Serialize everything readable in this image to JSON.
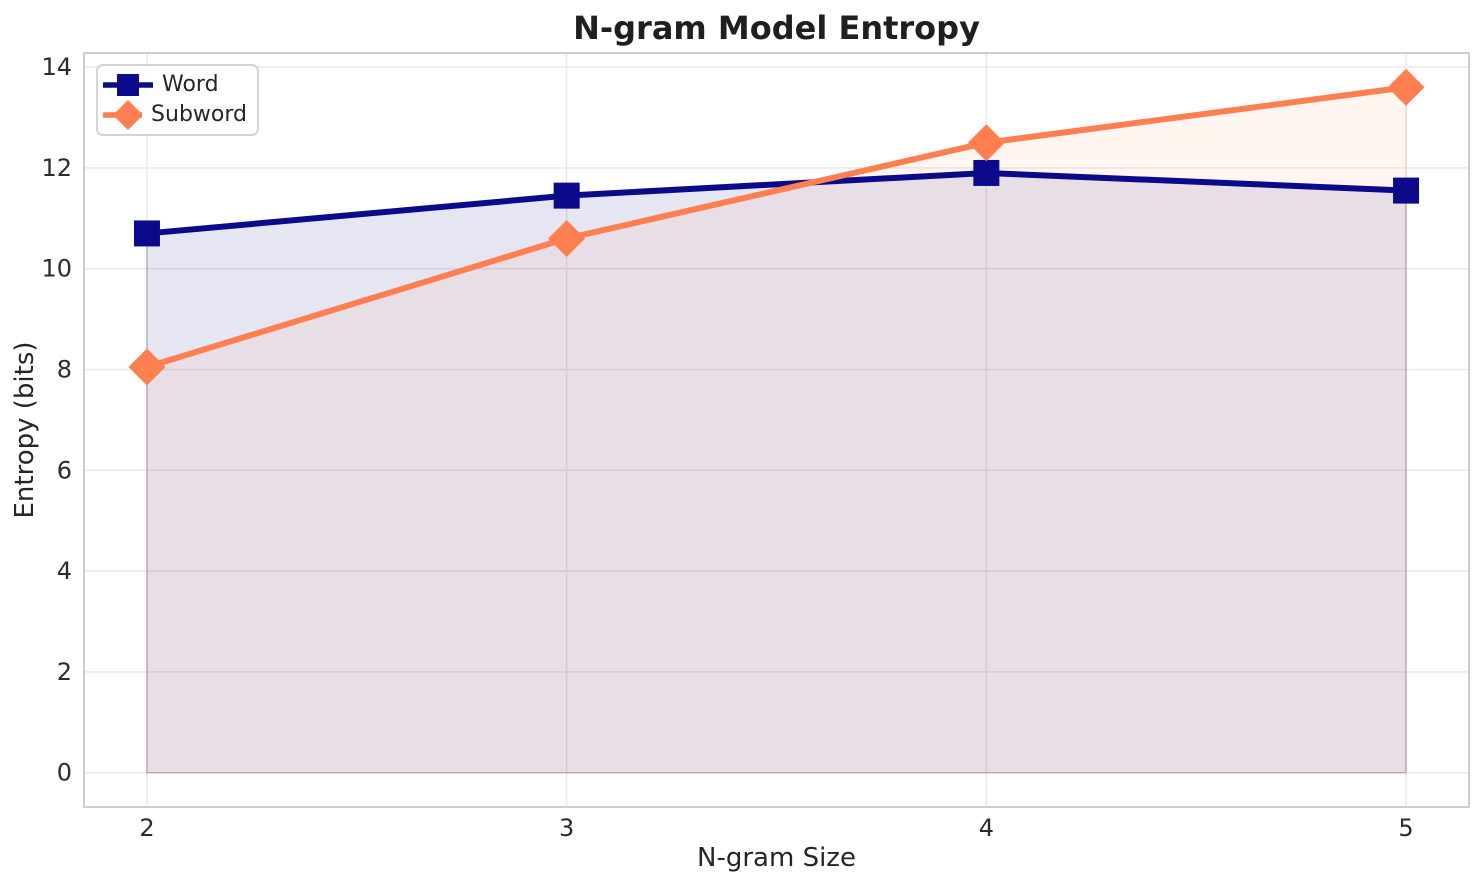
{
  "chart_data": {
    "type": "line",
    "title": "N-gram Model Entropy",
    "xlabel": "N-gram Size",
    "ylabel": "Entropy (bits)",
    "x": [
      2,
      3,
      4,
      5
    ],
    "series": [
      {
        "name": "Word",
        "values": [
          10.7,
          11.45,
          11.9,
          11.55
        ],
        "color": "#0a0a8a",
        "marker": "square",
        "fill_to_zero": true,
        "fill_alpha": 0.1,
        "line_width": 6
      },
      {
        "name": "Subword",
        "values": [
          8.05,
          10.6,
          12.5,
          13.6
        ],
        "color": "#ff7f50",
        "marker": "diamond",
        "fill_to_zero": true,
        "fill_alpha": 0.08,
        "line_width": 6
      }
    ],
    "xticks": {
      "values": [
        2,
        3,
        4,
        5
      ],
      "labels": [
        "2",
        "3",
        "4",
        "5"
      ]
    },
    "yticks": {
      "values": [
        0,
        2,
        4,
        6,
        8,
        10,
        12,
        14
      ],
      "labels": [
        "0",
        "2",
        "4",
        "6",
        "8",
        "10",
        "12",
        "14"
      ]
    },
    "xlim": [
      1.85,
      5.15
    ],
    "ylim": [
      -0.68,
      14.28
    ],
    "grid": true,
    "legend": {
      "position": "upper left",
      "entries": [
        "Word",
        "Subword"
      ]
    },
    "colors": {
      "grid": "#e8e8e8",
      "spine": "#cdcdcd",
      "tick_text": "#2b2b2b",
      "title_text": "#1f1f1f"
    }
  }
}
